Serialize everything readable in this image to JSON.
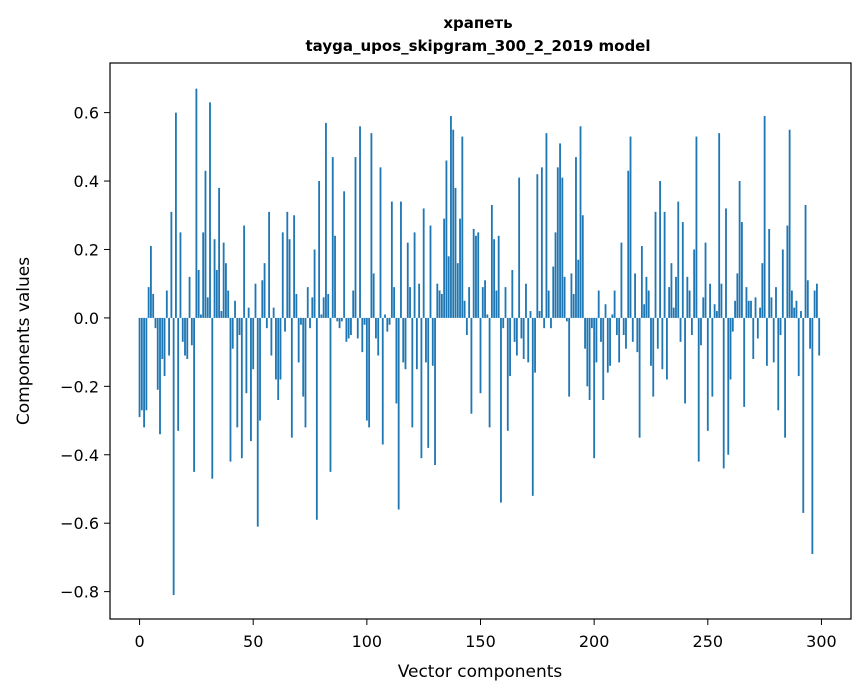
{
  "chart_data": {
    "type": "bar",
    "title_line1": "храпеть",
    "title_line2": "tayga_upos_skipgram_300_2_2019 model",
    "xlabel": "Vector components",
    "ylabel": "Components values",
    "xlim": [
      -13,
      313
    ],
    "ylim": [
      -0.88,
      0.745
    ],
    "grid": false,
    "bar_color": "#1f77b4",
    "x_ticks": [
      {
        "value": 0,
        "label": "0"
      },
      {
        "value": 50,
        "label": "50"
      },
      {
        "value": 100,
        "label": "100"
      },
      {
        "value": 150,
        "label": "150"
      },
      {
        "value": 200,
        "label": "200"
      },
      {
        "value": 250,
        "label": "250"
      },
      {
        "value": 300,
        "label": "300"
      }
    ],
    "y_ticks": [
      {
        "value": -0.8,
        "label": "−0.8"
      },
      {
        "value": -0.6,
        "label": "−0.6"
      },
      {
        "value": -0.4,
        "label": "−0.4"
      },
      {
        "value": -0.2,
        "label": "−0.2"
      },
      {
        "value": 0.0,
        "label": "0.0"
      },
      {
        "value": 0.2,
        "label": "0.2"
      },
      {
        "value": 0.4,
        "label": "0.4"
      },
      {
        "value": 0.6,
        "label": "0.6"
      }
    ],
    "values": [
      -0.29,
      -0.27,
      -0.32,
      -0.27,
      0.09,
      0.21,
      0.07,
      -0.03,
      -0.21,
      -0.34,
      -0.12,
      -0.17,
      0.08,
      -0.11,
      0.31,
      -0.81,
      0.6,
      -0.33,
      0.25,
      -0.07,
      -0.11,
      -0.12,
      0.12,
      -0.08,
      -0.45,
      0.67,
      0.14,
      0.01,
      0.25,
      0.43,
      0.06,
      0.63,
      -0.47,
      0.23,
      0.14,
      0.38,
      0.02,
      0.22,
      0.16,
      0.08,
      -0.42,
      -0.09,
      0.05,
      -0.32,
      -0.05,
      -0.41,
      0.27,
      -0.22,
      0.03,
      -0.36,
      -0.15,
      0.1,
      -0.61,
      -0.3,
      0.11,
      0.16,
      -0.03,
      0.31,
      -0.11,
      0.03,
      -0.18,
      -0.24,
      -0.18,
      0.25,
      -0.04,
      0.31,
      0.23,
      -0.35,
      0.3,
      0.07,
      -0.13,
      -0.02,
      -0.23,
      -0.32,
      0.09,
      -0.03,
      0.06,
      0.2,
      -0.59,
      0.4,
      0.01,
      0.06,
      0.57,
      0.07,
      -0.45,
      0.47,
      0.24,
      -0.01,
      -0.03,
      -0.01,
      0.37,
      -0.07,
      -0.06,
      -0.05,
      0.08,
      0.47,
      -0.06,
      0.56,
      -0.1,
      -0.02,
      -0.3,
      -0.32,
      0.54,
      0.13,
      -0.06,
      -0.11,
      0.44,
      -0.37,
      0.01,
      -0.04,
      -0.02,
      0.34,
      0.09,
      -0.25,
      -0.56,
      0.34,
      -0.13,
      -0.15,
      0.22,
      0.09,
      -0.32,
      0.25,
      -0.15,
      0.1,
      -0.41,
      0.32,
      -0.13,
      -0.38,
      0.27,
      -0.14,
      -0.43,
      0.1,
      0.08,
      0.07,
      0.29,
      0.46,
      0.18,
      0.59,
      0.55,
      0.38,
      0.16,
      0.29,
      0.53,
      0.05,
      -0.05,
      0.09,
      -0.28,
      0.26,
      0.24,
      0.25,
      -0.22,
      0.09,
      0.11,
      0.01,
      -0.32,
      0.33,
      0.23,
      0.08,
      0.24,
      -0.54,
      -0.03,
      0.09,
      -0.33,
      -0.17,
      0.14,
      -0.07,
      -0.11,
      0.41,
      -0.06,
      -0.12,
      0.1,
      -0.13,
      0.02,
      -0.52,
      -0.16,
      0.42,
      0.02,
      0.44,
      -0.03,
      0.54,
      0.08,
      -0.03,
      0.15,
      0.25,
      0.44,
      0.51,
      0.41,
      0.12,
      -0.01,
      -0.23,
      0.13,
      0.07,
      0.47,
      0.17,
      0.56,
      0.3,
      -0.09,
      -0.2,
      -0.24,
      -0.03,
      -0.41,
      -0.13,
      0.08,
      -0.07,
      -0.24,
      0.04,
      -0.16,
      -0.14,
      0.01,
      0.08,
      -0.05,
      -0.13,
      0.22,
      -0.05,
      -0.09,
      0.43,
      0.53,
      -0.07,
      0.13,
      -0.1,
      -0.35,
      0.21,
      0.04,
      0.12,
      0.08,
      -0.14,
      -0.23,
      0.31,
      -0.09,
      0.4,
      -0.15,
      0.31,
      -0.18,
      0.09,
      0.16,
      0.03,
      0.12,
      0.34,
      -0.07,
      0.28,
      -0.25,
      0.12,
      0.08,
      -0.05,
      0.2,
      0.53,
      -0.42,
      -0.08,
      0.06,
      0.22,
      -0.33,
      0.1,
      -0.23,
      0.04,
      0.02,
      0.54,
      0.1,
      -0.44,
      0.32,
      -0.4,
      -0.18,
      -0.04,
      0.05,
      0.13,
      0.4,
      0.28,
      -0.26,
      0.09,
      0.05,
      0.05,
      -0.12,
      0.06,
      -0.06,
      0.03,
      0.16,
      0.59,
      -0.14,
      0.26,
      0.06,
      -0.13,
      0.09,
      -0.27,
      -0.05,
      0.2,
      -0.35,
      0.27,
      0.55,
      0.08,
      0.03,
      0.05,
      -0.17,
      0.02,
      -0.57,
      0.33,
      0.11,
      -0.09,
      -0.69,
      0.08,
      0.1,
      -0.11
    ]
  }
}
